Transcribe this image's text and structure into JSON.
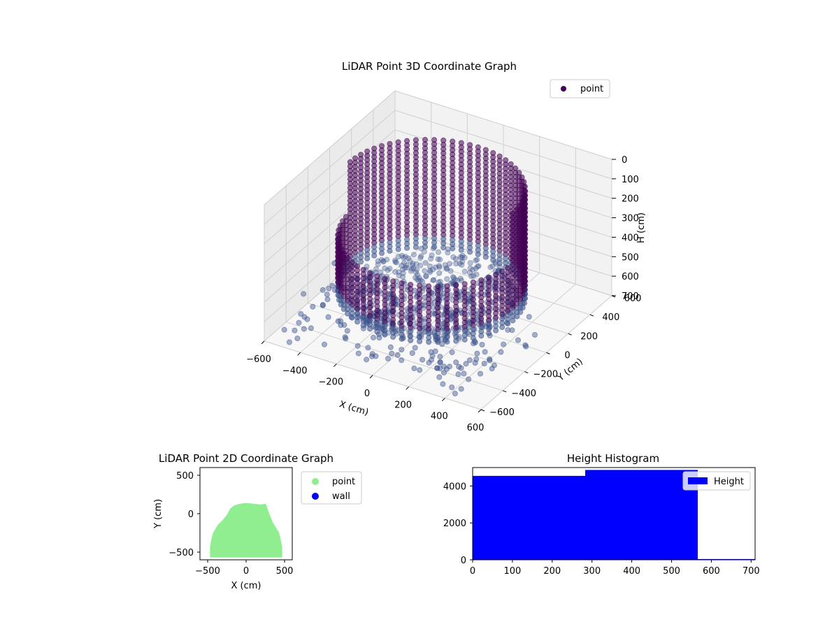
{
  "figure": {
    "background": "#ffffff"
  },
  "chart_data": [
    {
      "id": "plot3d",
      "type": "scatter",
      "title": "LiDAR Point 3D Coordinate Graph",
      "xlabel": "X (cm)",
      "ylabel": "Y (cm)",
      "zlabel": "H (cm)",
      "xlim": [
        -600,
        600
      ],
      "ylim": [
        -600,
        600
      ],
      "zlim": [
        700,
        0
      ],
      "xticks": [
        "−600",
        "−400",
        "−200",
        "0",
        "200",
        "400",
        "600"
      ],
      "yticks": [
        "−600",
        "−400",
        "−200",
        "0",
        "200",
        "400",
        "600"
      ],
      "zticks": [
        "0",
        "100",
        "200",
        "300",
        "400",
        "500",
        "600",
        "700"
      ],
      "grid": true,
      "legend": {
        "placement": "top-right",
        "entries": [
          "point"
        ]
      },
      "series": [
        {
          "name": "point",
          "color": "#440154",
          "description_values": {
            "wall_radius_cm": 450,
            "wall_height_range_cm": [
              0,
              560
            ],
            "floor_h_cm": 560,
            "scatter_outliers_extend_to_cm": 700
          }
        }
      ]
    },
    {
      "id": "plot2d",
      "type": "scatter",
      "title": "LiDAR Point 2D Coordinate Graph",
      "xlabel": "X (cm)",
      "ylabel": "Y (cm)",
      "xlim": [
        -600,
        600
      ],
      "ylim": [
        -600,
        600
      ],
      "xticks": [
        "−500",
        "0",
        "500"
      ],
      "yticks": [
        "−500",
        "0",
        "500"
      ],
      "legend": {
        "placement": "outside-right",
        "entries": [
          "point",
          "wall"
        ]
      },
      "series": [
        {
          "name": "point",
          "color": "#90ee90",
          "outline_x": [
            -460,
            -460,
            -440,
            -420,
            -390,
            -360,
            -300,
            -250,
            -230,
            -200,
            -150,
            -100,
            -50,
            0,
            50,
            100,
            150,
            200,
            250,
            270,
            300,
            340,
            390,
            420,
            440,
            460,
            460
          ],
          "outline_y": [
            -560,
            -430,
            -320,
            -250,
            -200,
            -150,
            -90,
            -30,
            0,
            60,
            100,
            115,
            125,
            130,
            125,
            120,
            115,
            110,
            120,
            60,
            -20,
            -120,
            -200,
            -250,
            -330,
            -440,
            -560
          ]
        },
        {
          "name": "wall",
          "color": "#0000ff"
        }
      ]
    },
    {
      "id": "hist",
      "type": "bar",
      "title": "Height Histogram",
      "xlim": [
        0,
        710
      ],
      "ylim": [
        0,
        5000
      ],
      "xticks": [
        "0",
        "100",
        "200",
        "300",
        "400",
        "500",
        "600",
        "700"
      ],
      "yticks": [
        "0",
        "2000",
        "4000"
      ],
      "legend": {
        "placement": "top-right",
        "entries": [
          "Height"
        ]
      },
      "series": [
        {
          "name": "Height",
          "color": "#0000ff",
          "bins": [
            {
              "from": 0,
              "to": 283,
              "count": 4550
            },
            {
              "from": 283,
              "to": 566,
              "count": 4870
            },
            {
              "from": 566,
              "to": 710,
              "count": 40
            }
          ]
        }
      ]
    }
  ]
}
